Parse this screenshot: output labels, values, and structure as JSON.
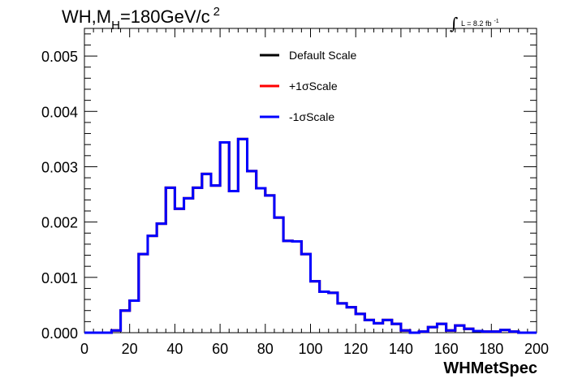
{
  "chart_data": {
    "type": "line",
    "style": "step-histogram",
    "title": {
      "prefix": "WH,M",
      "subscript": "H",
      "middle": "=180GeV/c",
      "superscript": "2"
    },
    "luminosity": {
      "symbol": "∫",
      "text": "L = 8.2 fb",
      "superscript": "-1"
    },
    "xlabel": "WHMetSpec",
    "ylabel": "",
    "xlim": [
      0,
      200
    ],
    "ylim": [
      0,
      0.0055
    ],
    "x_ticks": [
      "0",
      "20",
      "40",
      "60",
      "80",
      "100",
      "120",
      "140",
      "160",
      "180",
      "200"
    ],
    "y_ticks": [
      "0.000",
      "0.001",
      "0.002",
      "0.003",
      "0.004",
      "0.005"
    ],
    "y_tick_values": [
      0,
      0.001,
      0.002,
      0.003,
      0.004,
      0.005
    ],
    "grid": false,
    "legend_position": "top-center",
    "bin_edges": [
      0,
      4,
      8,
      12,
      16,
      20,
      24,
      28,
      32,
      36,
      40,
      44,
      48,
      52,
      56,
      60,
      64,
      68,
      72,
      76,
      80,
      84,
      88,
      92,
      96,
      100,
      104,
      108,
      112,
      116,
      120,
      124,
      128,
      132,
      136,
      140,
      144,
      148,
      152,
      156,
      160,
      164,
      168,
      172,
      176,
      180,
      184,
      188,
      192,
      196,
      200
    ],
    "series": [
      {
        "name": "Default Scale",
        "color": "#000000",
        "values": [
          0,
          0,
          0,
          4e-05,
          0.0004,
          0.00058,
          0.00142,
          0.00175,
          0.00197,
          0.00262,
          0.00224,
          0.00243,
          0.00262,
          0.00287,
          0.00266,
          0.00344,
          0.00256,
          0.0035,
          0.00292,
          0.00261,
          0.00248,
          0.00208,
          0.00166,
          0.00165,
          0.00142,
          0.00093,
          0.00074,
          0.00072,
          0.00053,
          0.00046,
          0.00034,
          0.00023,
          0.00017,
          0.00023,
          0.00016,
          4e-05,
          0.0,
          2e-05,
          0.0001,
          0.00016,
          4e-05,
          0.00013,
          7e-05,
          3e-05,
          2e-05,
          2e-05,
          5e-05,
          2e-05,
          0,
          0
        ]
      },
      {
        "name": "+1σScale",
        "color": "#ff0000",
        "values": [
          0,
          0,
          0,
          4e-05,
          0.0004,
          0.00058,
          0.00142,
          0.00175,
          0.00197,
          0.00262,
          0.00224,
          0.00243,
          0.00262,
          0.00287,
          0.00266,
          0.00344,
          0.00256,
          0.0035,
          0.00292,
          0.00261,
          0.00248,
          0.00208,
          0.00166,
          0.00165,
          0.00142,
          0.00093,
          0.00074,
          0.00072,
          0.00053,
          0.00046,
          0.00034,
          0.00023,
          0.00017,
          0.00023,
          0.00016,
          4e-05,
          0.0,
          2e-05,
          0.0001,
          0.00016,
          4e-05,
          0.00013,
          7e-05,
          3e-05,
          2e-05,
          2e-05,
          5e-05,
          2e-05,
          0,
          0
        ]
      },
      {
        "name": "-1σScale",
        "color": "#0000ff",
        "values": [
          0,
          0,
          0,
          4e-05,
          0.0004,
          0.00058,
          0.00142,
          0.00175,
          0.00197,
          0.00262,
          0.00224,
          0.00243,
          0.00262,
          0.00287,
          0.00266,
          0.00344,
          0.00256,
          0.0035,
          0.00292,
          0.00261,
          0.00248,
          0.00208,
          0.00166,
          0.00165,
          0.00142,
          0.00093,
          0.00074,
          0.00072,
          0.00053,
          0.00046,
          0.00034,
          0.00023,
          0.00017,
          0.00023,
          0.00016,
          4e-05,
          0.0,
          2e-05,
          0.0001,
          0.00016,
          4e-05,
          0.00013,
          7e-05,
          3e-05,
          2e-05,
          2e-05,
          5e-05,
          2e-05,
          0,
          0
        ]
      }
    ]
  }
}
